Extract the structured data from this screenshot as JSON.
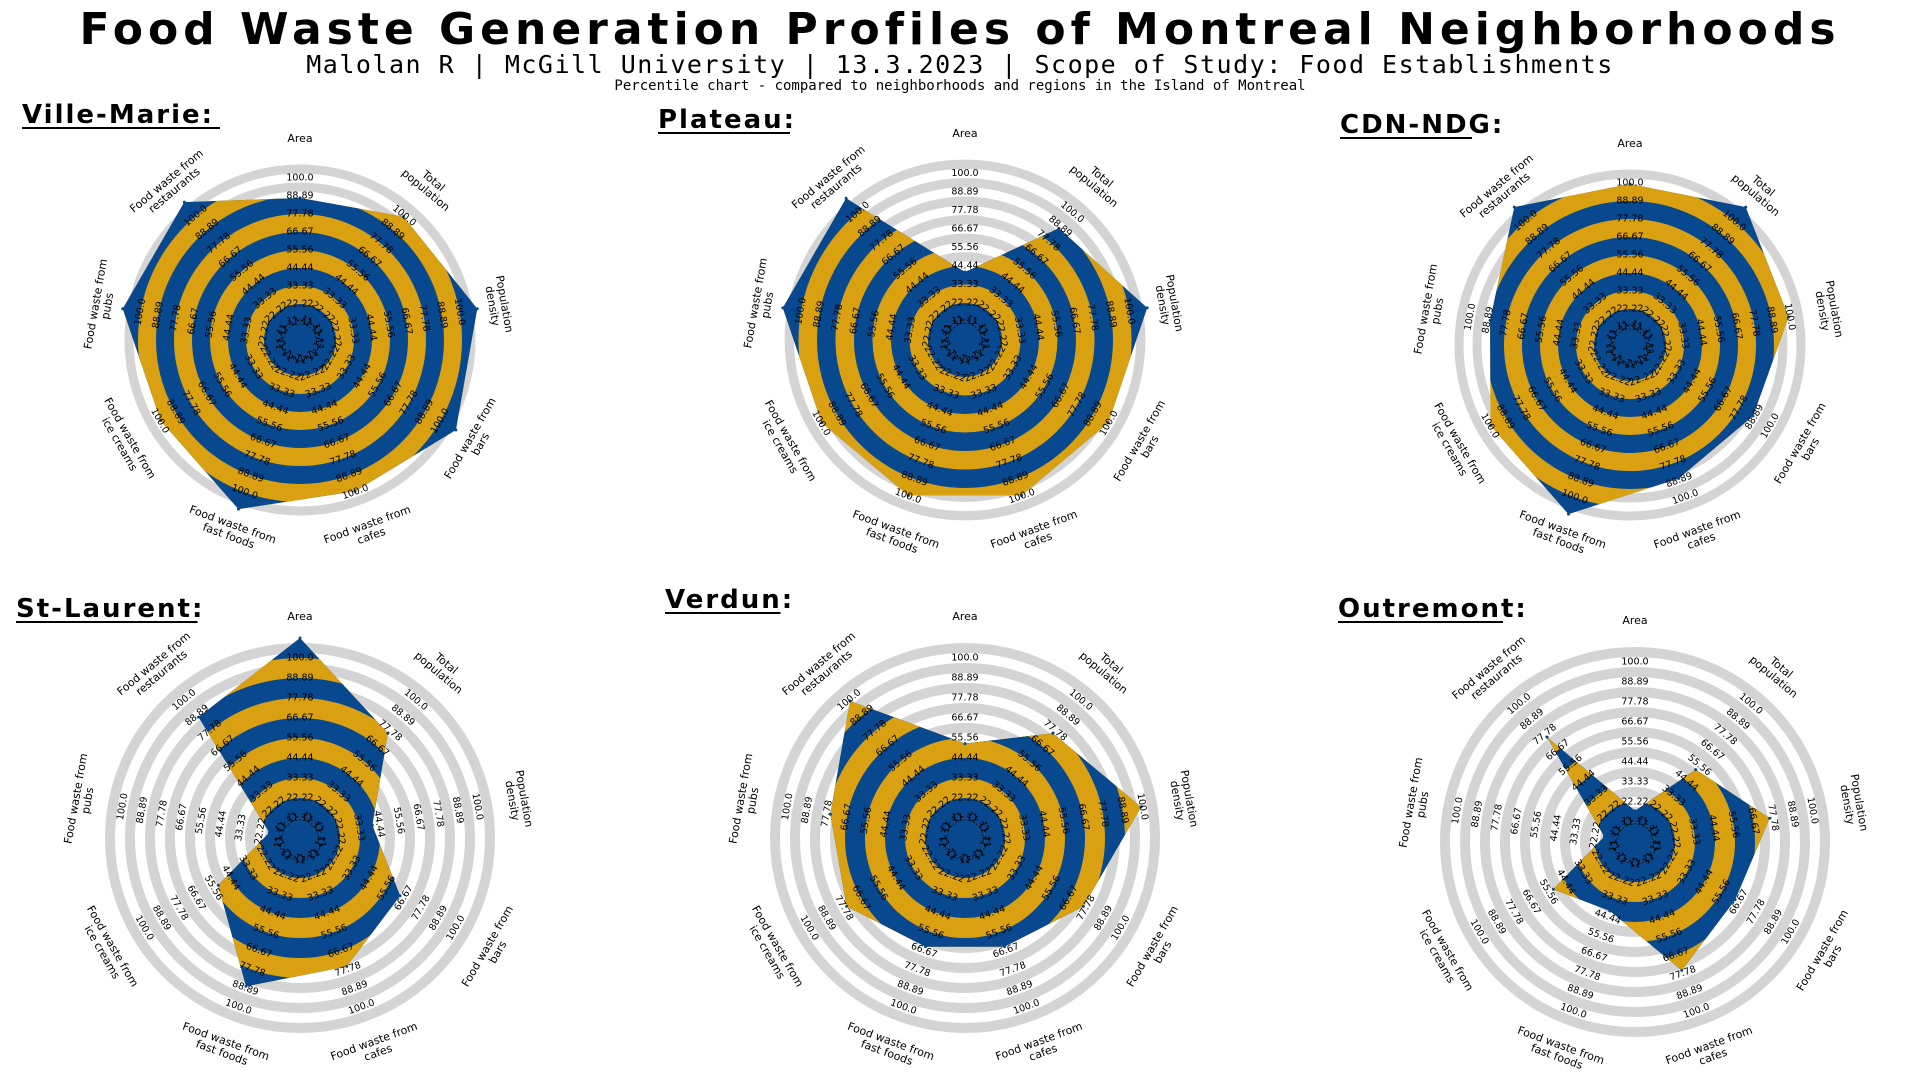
{
  "header": {
    "title": "Food Waste Generation Profiles of Montreal Neighborhoods",
    "subtitle": "Malolan R | McGill University | 13.3.2023 | Scope of Study: Food Establishments",
    "note": "Percentile chart - compared to neighborhoods and regions in the Island of Montreal"
  },
  "colors": {
    "blue": "#08488e",
    "gold": "#d9a111",
    "grid": "#d4d4d4"
  },
  "chart_data": [
    {
      "type": "radar",
      "title": "Ville-Marie:",
      "axes": [
        "Area",
        "Total population",
        "Population density",
        "Food waste from bars",
        "Food waste from cafes",
        "Food waste from fast foods",
        "Food waste from ice creams",
        "Food waste from pubs",
        "Food waste from restaurants"
      ],
      "ticks": [
        "0.0",
        "11.11",
        "22.22",
        "33.33",
        "44.44",
        "55.56",
        "66.67",
        "77.78",
        "88.89",
        "100.0"
      ],
      "range": [
        0,
        100
      ],
      "values": [
        77.78,
        88.89,
        100,
        100,
        88.89,
        100,
        88.89,
        100,
        100
      ]
    },
    {
      "type": "radar",
      "title": "Plateau:",
      "axes": [
        "Area",
        "Total population",
        "Population density",
        "Food waste from bars",
        "Food waste from cafes",
        "Food waste from fast foods",
        "Food waste from ice creams",
        "Food waste from pubs",
        "Food waste from restaurants"
      ],
      "ticks": [
        "0.0",
        "11.11",
        "22.22",
        "33.33",
        "44.44",
        "55.56",
        "66.67",
        "77.78",
        "88.89",
        "100.0"
      ],
      "range": [
        0,
        100
      ],
      "values": [
        33.33,
        77.78,
        100,
        88.89,
        88.89,
        88.89,
        88.89,
        100,
        100
      ]
    },
    {
      "type": "radar",
      "title": "CDN-NDG:",
      "axes": [
        "Area",
        "Total population",
        "Population density",
        "Food waste from bars",
        "Food waste from cafes",
        "Food waste from fast foods",
        "Food waste from ice creams",
        "Food waste from pubs",
        "Food waste from restaurants"
      ],
      "ticks": [
        "0.0",
        "11.11",
        "22.22",
        "33.33",
        "44.44",
        "55.56",
        "66.67",
        "77.78",
        "88.89",
        "100.0"
      ],
      "range": [
        0,
        100
      ],
      "values": [
        88.89,
        100,
        88.89,
        77.78,
        77.78,
        100,
        88.89,
        77.78,
        100
      ]
    },
    {
      "type": "radar",
      "title": "St-Laurent:",
      "axes": [
        "Area",
        "Total population",
        "Population density",
        "Food waste from bars",
        "Food waste from cafes",
        "Food waste from fast foods",
        "Food waste from ice creams",
        "Food waste from pubs",
        "Food waste from restaurants"
      ],
      "ticks": [
        "0.0",
        "11.11",
        "22.22",
        "33.33",
        "44.44",
        "55.56",
        "66.67",
        "77.78",
        "88.89",
        "100.0"
      ],
      "range": [
        0,
        100
      ],
      "values": [
        100,
        66.67,
        33.33,
        55.56,
        66.67,
        77.78,
        44.44,
        11.11,
        77.78
      ]
    },
    {
      "type": "radar",
      "title": "Verdun:",
      "axes": [
        "Area",
        "Total population",
        "Population density",
        "Food waste from bars",
        "Food waste from cafes",
        "Food waste from fast foods",
        "Food waste from ice creams",
        "Food waste from pubs",
        "Food waste from restaurants"
      ],
      "ticks": [
        "0.0",
        "11.11",
        "22.22",
        "33.33",
        "44.44",
        "55.56",
        "66.67",
        "77.78",
        "88.89",
        "100.0"
      ],
      "range": [
        0,
        100
      ],
      "values": [
        44.44,
        66.67,
        88.89,
        66.67,
        55.56,
        55.56,
        66.67,
        66.67,
        88.89
      ]
    },
    {
      "type": "radar",
      "title": "Outremont:",
      "axes": [
        "Area",
        "Total population",
        "Population density",
        "Food waste from bars",
        "Food waste from cafes",
        "Food waste from fast foods",
        "Food waste from ice creams",
        "Food waste from pubs",
        "Food waste from restaurants"
      ],
      "ticks": [
        "0.0",
        "11.11",
        "22.22",
        "33.33",
        "44.44",
        "55.56",
        "66.67",
        "77.78",
        "88.89",
        "100.0"
      ],
      "range": [
        0,
        100
      ],
      "values": [
        11.11,
        44.44,
        66.67,
        55.56,
        66.67,
        33.33,
        44.44,
        11.11,
        66.67
      ]
    }
  ]
}
